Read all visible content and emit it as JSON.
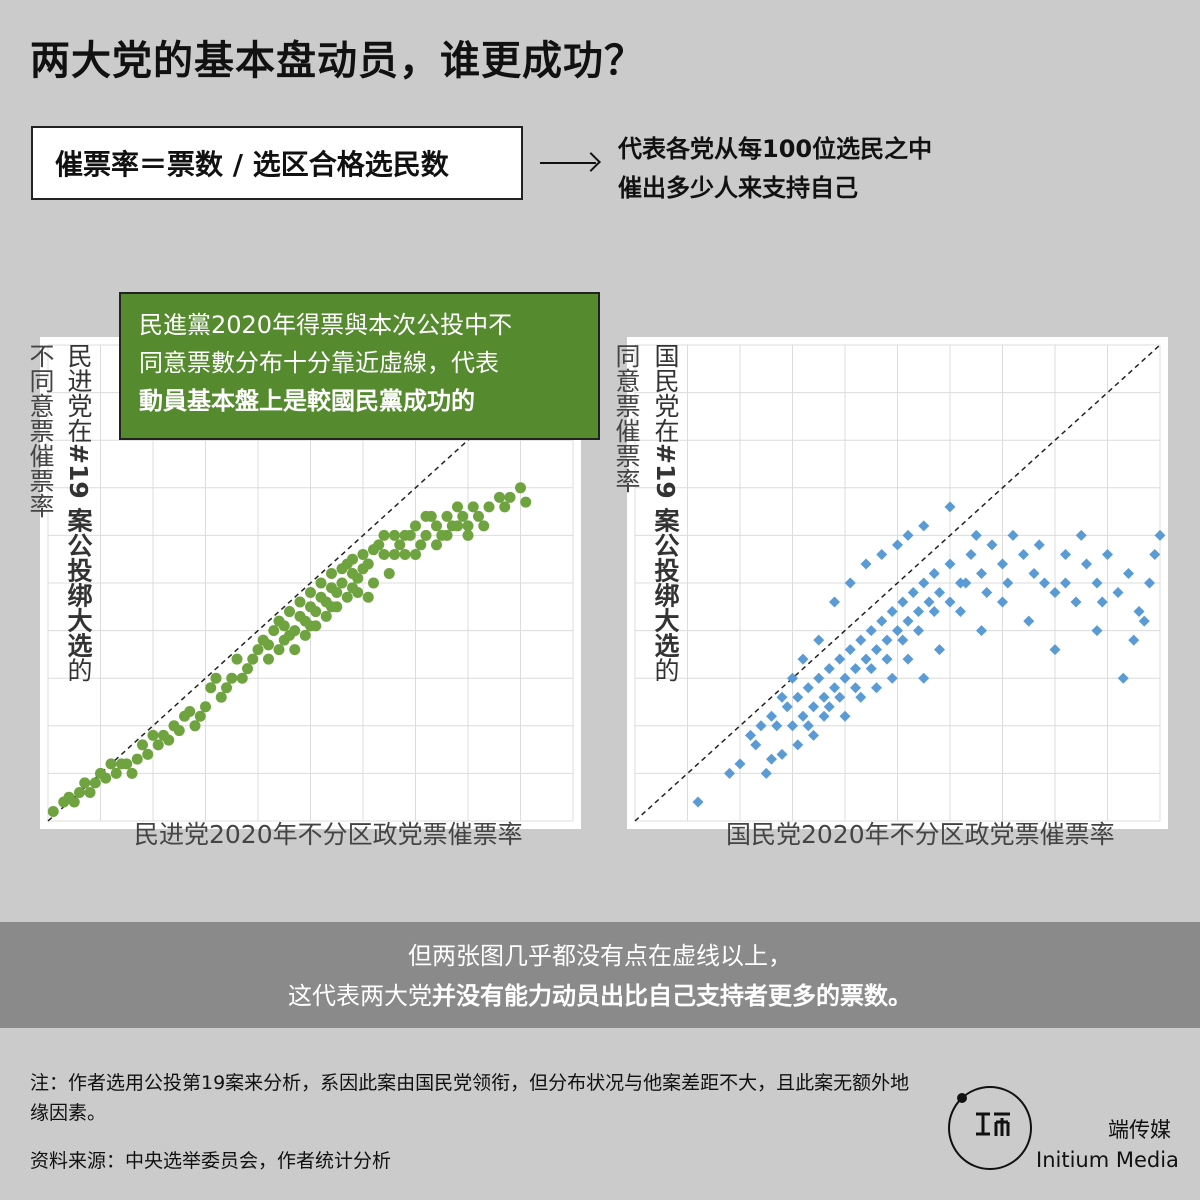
{
  "title": "两大党的基本盘动员，谁更成功？",
  "formula": "催票率＝票数 / 选区合格选民数",
  "explain": [
    "代表各党从每100位选民之中",
    "催出多少人来支持自己"
  ],
  "callout": {
    "line1": "民進黨2020年得票與本次公投中不",
    "line2": "同意票數分布十分靠近虛線，代表",
    "line3": "動員基本盤上是較國民黨成功的"
  },
  "left_chart": {
    "y_label_light": "不同意票催票率",
    "y_label_party": "民进党在",
    "y_label_bold": "#19 案公投绑大选",
    "y_label_end": "的",
    "x_label": "民进党2020年不分区政党票催票率"
  },
  "right_chart": {
    "y_label_light": "同意票催票率",
    "y_label_party": "国民党在",
    "y_label_bold": "#19 案公投绑大选",
    "y_label_end": "的",
    "x_label": "国民党2020年不分区政党票催票率"
  },
  "band": {
    "line1": "但两张图几乎都没有点在虚线以上，",
    "line2_plain": "这代表两大党",
    "line2_bold": "并没有能力动员出比自己支持者更多的票数。"
  },
  "note": "注：作者选用公投第19案来分析，系因此案由国民党领衔，但分布状况与他案差距不大，且此案无额外地缘因素。",
  "source": "资料来源：中央选举委员会，作者统计分析",
  "brand": {
    "cn": "端传媒",
    "en": "Initium Media",
    "logo_icon": "initium-logo-icon"
  },
  "colors": {
    "dpp": "#6ea33f",
    "kmt": "#5b9bd5",
    "callout": "#558a2f",
    "band": "#8a8a8a",
    "background": "#cbcbcb"
  },
  "chart_data": [
    {
      "type": "scatter",
      "name": "dpp",
      "xlabel": "民进党2020年不分区政党票催票率",
      "ylabel": "民进党在 #19 案公投绑大选的不同意票催票率",
      "xlim": [
        0,
        1
      ],
      "ylim": [
        0,
        1
      ],
      "reference_line": "y = x (dashed)",
      "grid": true,
      "points": [
        [
          0.01,
          0.02
        ],
        [
          0.03,
          0.04
        ],
        [
          0.04,
          0.05
        ],
        [
          0.06,
          0.06
        ],
        [
          0.07,
          0.08
        ],
        [
          0.09,
          0.08
        ],
        [
          0.1,
          0.1
        ],
        [
          0.12,
          0.12
        ],
        [
          0.13,
          0.1
        ],
        [
          0.15,
          0.12
        ],
        [
          0.17,
          0.13
        ],
        [
          0.18,
          0.16
        ],
        [
          0.2,
          0.18
        ],
        [
          0.22,
          0.18
        ],
        [
          0.24,
          0.2
        ],
        [
          0.26,
          0.22
        ],
        [
          0.28,
          0.2
        ],
        [
          0.3,
          0.24
        ],
        [
          0.31,
          0.28
        ],
        [
          0.33,
          0.26
        ],
        [
          0.35,
          0.3
        ],
        [
          0.36,
          0.34
        ],
        [
          0.38,
          0.32
        ],
        [
          0.4,
          0.36
        ],
        [
          0.41,
          0.38
        ],
        [
          0.42,
          0.34
        ],
        [
          0.43,
          0.4
        ],
        [
          0.44,
          0.42
        ],
        [
          0.45,
          0.38
        ],
        [
          0.46,
          0.44
        ],
        [
          0.47,
          0.4
        ],
        [
          0.48,
          0.46
        ],
        [
          0.49,
          0.42
        ],
        [
          0.5,
          0.48
        ],
        [
          0.51,
          0.44
        ],
        [
          0.52,
          0.5
        ],
        [
          0.53,
          0.46
        ],
        [
          0.54,
          0.52
        ],
        [
          0.55,
          0.48
        ],
        [
          0.56,
          0.5
        ],
        [
          0.57,
          0.54
        ],
        [
          0.58,
          0.52
        ],
        [
          0.59,
          0.48
        ],
        [
          0.6,
          0.56
        ],
        [
          0.61,
          0.54
        ],
        [
          0.62,
          0.5
        ],
        [
          0.63,
          0.58
        ],
        [
          0.64,
          0.56
        ],
        [
          0.65,
          0.52
        ],
        [
          0.66,
          0.6
        ],
        [
          0.67,
          0.58
        ],
        [
          0.68,
          0.56
        ],
        [
          0.69,
          0.6
        ],
        [
          0.7,
          0.62
        ],
        [
          0.71,
          0.58
        ],
        [
          0.72,
          0.6
        ],
        [
          0.73,
          0.64
        ],
        [
          0.74,
          0.62
        ],
        [
          0.75,
          0.6
        ],
        [
          0.76,
          0.64
        ],
        [
          0.77,
          0.62
        ],
        [
          0.78,
          0.66
        ],
        [
          0.79,
          0.64
        ],
        [
          0.8,
          0.62
        ],
        [
          0.81,
          0.66
        ],
        [
          0.82,
          0.64
        ],
        [
          0.84,
          0.66
        ],
        [
          0.86,
          0.68
        ],
        [
          0.87,
          0.66
        ],
        [
          0.88,
          0.68
        ],
        [
          0.9,
          0.7
        ],
        [
          0.91,
          0.67
        ],
        [
          0.47,
          0.36
        ],
        [
          0.49,
          0.39
        ],
        [
          0.51,
          0.41
        ],
        [
          0.53,
          0.43
        ],
        [
          0.55,
          0.45
        ],
        [
          0.57,
          0.47
        ],
        [
          0.59,
          0.51
        ],
        [
          0.61,
          0.47
        ],
        [
          0.45,
          0.41
        ],
        [
          0.5,
          0.45
        ],
        [
          0.54,
          0.49
        ],
        [
          0.56,
          0.53
        ],
        [
          0.58,
          0.55
        ],
        [
          0.6,
          0.53
        ],
        [
          0.62,
          0.57
        ],
        [
          0.64,
          0.6
        ],
        [
          0.44,
          0.36
        ],
        [
          0.46,
          0.39
        ],
        [
          0.48,
          0.43
        ],
        [
          0.5,
          0.41
        ],
        [
          0.52,
          0.47
        ],
        [
          0.54,
          0.45
        ],
        [
          0.58,
          0.49
        ],
        [
          0.66,
          0.56
        ],
        [
          0.68,
          0.6
        ],
        [
          0.7,
          0.56
        ],
        [
          0.72,
          0.64
        ],
        [
          0.74,
          0.58
        ],
        [
          0.76,
          0.6
        ],
        [
          0.78,
          0.62
        ],
        [
          0.8,
          0.6
        ],
        [
          0.83,
          0.62
        ],
        [
          0.16,
          0.1
        ],
        [
          0.19,
          0.14
        ],
        [
          0.21,
          0.16
        ],
        [
          0.23,
          0.17
        ],
        [
          0.25,
          0.19
        ],
        [
          0.27,
          0.23
        ],
        [
          0.29,
          0.22
        ],
        [
          0.32,
          0.3
        ],
        [
          0.34,
          0.28
        ],
        [
          0.37,
          0.3
        ],
        [
          0.39,
          0.34
        ],
        [
          0.42,
          0.37
        ],
        [
          0.08,
          0.06
        ],
        [
          0.11,
          0.09
        ],
        [
          0.14,
          0.12
        ],
        [
          0.05,
          0.04
        ]
      ]
    },
    {
      "type": "scatter",
      "name": "kmt",
      "xlabel": "国民党2020年不分区政党票催票率",
      "ylabel": "国民党在 #19 案公投绑大选的同意票催票率",
      "xlim": [
        0,
        1
      ],
      "ylim": [
        0,
        1
      ],
      "reference_line": "y = x (dashed)",
      "grid": true,
      "points": [
        [
          0.2,
          0.12
        ],
        [
          0.26,
          0.13
        ],
        [
          0.27,
          0.2
        ],
        [
          0.29,
          0.24
        ],
        [
          0.3,
          0.2
        ],
        [
          0.31,
          0.26
        ],
        [
          0.32,
          0.22
        ],
        [
          0.33,
          0.28
        ],
        [
          0.34,
          0.24
        ],
        [
          0.35,
          0.3
        ],
        [
          0.36,
          0.26
        ],
        [
          0.37,
          0.32
        ],
        [
          0.38,
          0.28
        ],
        [
          0.39,
          0.34
        ],
        [
          0.4,
          0.3
        ],
        [
          0.41,
          0.36
        ],
        [
          0.42,
          0.32
        ],
        [
          0.43,
          0.38
        ],
        [
          0.44,
          0.34
        ],
        [
          0.45,
          0.4
        ],
        [
          0.46,
          0.36
        ],
        [
          0.47,
          0.42
        ],
        [
          0.48,
          0.38
        ],
        [
          0.49,
          0.44
        ],
        [
          0.5,
          0.4
        ],
        [
          0.51,
          0.46
        ],
        [
          0.52,
          0.42
        ],
        [
          0.53,
          0.48
        ],
        [
          0.54,
          0.44
        ],
        [
          0.55,
          0.5
        ],
        [
          0.56,
          0.46
        ],
        [
          0.57,
          0.52
        ],
        [
          0.58,
          0.48
        ],
        [
          0.6,
          0.54
        ],
        [
          0.62,
          0.5
        ],
        [
          0.64,
          0.56
        ],
        [
          0.66,
          0.52
        ],
        [
          0.68,
          0.58
        ],
        [
          0.7,
          0.54
        ],
        [
          0.72,
          0.6
        ],
        [
          0.74,
          0.56
        ],
        [
          0.76,
          0.52
        ],
        [
          0.78,
          0.5
        ],
        [
          0.8,
          0.48
        ],
        [
          0.82,
          0.5
        ],
        [
          0.84,
          0.46
        ],
        [
          0.86,
          0.54
        ],
        [
          0.88,
          0.5
        ],
        [
          0.9,
          0.56
        ],
        [
          0.92,
          0.48
        ],
        [
          0.94,
          0.52
        ],
        [
          0.96,
          0.44
        ],
        [
          0.98,
          0.5
        ],
        [
          0.99,
          0.56
        ],
        [
          1.0,
          0.6
        ],
        [
          0.88,
          0.4
        ],
        [
          0.93,
          0.3
        ],
        [
          0.8,
          0.36
        ],
        [
          0.75,
          0.42
        ],
        [
          0.7,
          0.46
        ],
        [
          0.66,
          0.4
        ],
        [
          0.62,
          0.44
        ],
        [
          0.58,
          0.36
        ],
        [
          0.55,
          0.3
        ],
        [
          0.52,
          0.34
        ],
        [
          0.49,
          0.3
        ],
        [
          0.46,
          0.28
        ],
        [
          0.43,
          0.26
        ],
        [
          0.4,
          0.22
        ],
        [
          0.37,
          0.24
        ],
        [
          0.34,
          0.18
        ],
        [
          0.31,
          0.16
        ],
        [
          0.28,
          0.14
        ],
        [
          0.25,
          0.1
        ],
        [
          0.33,
          0.2
        ],
        [
          0.36,
          0.22
        ],
        [
          0.39,
          0.26
        ],
        [
          0.42,
          0.28
        ],
        [
          0.45,
          0.32
        ],
        [
          0.48,
          0.34
        ],
        [
          0.51,
          0.38
        ],
        [
          0.54,
          0.4
        ],
        [
          0.57,
          0.44
        ],
        [
          0.6,
          0.46
        ],
        [
          0.63,
          0.5
        ],
        [
          0.65,
          0.6
        ],
        [
          0.6,
          0.66
        ],
        [
          0.55,
          0.62
        ],
        [
          0.52,
          0.6
        ],
        [
          0.5,
          0.58
        ],
        [
          0.47,
          0.56
        ],
        [
          0.44,
          0.54
        ],
        [
          0.41,
          0.5
        ],
        [
          0.38,
          0.46
        ],
        [
          0.35,
          0.38
        ],
        [
          0.32,
          0.34
        ],
        [
          0.3,
          0.3
        ],
        [
          0.28,
          0.26
        ],
        [
          0.26,
          0.22
        ],
        [
          0.24,
          0.2
        ],
        [
          0.22,
          0.18
        ],
        [
          0.12,
          0.04
        ],
        [
          0.18,
          0.1
        ],
        [
          0.23,
          0.16
        ],
        [
          0.67,
          0.48
        ],
        [
          0.71,
          0.5
        ],
        [
          0.77,
          0.58
        ],
        [
          0.82,
          0.56
        ],
        [
          0.85,
          0.6
        ],
        [
          0.89,
          0.46
        ],
        [
          0.95,
          0.38
        ],
        [
          0.97,
          0.42
        ]
      ]
    }
  ]
}
